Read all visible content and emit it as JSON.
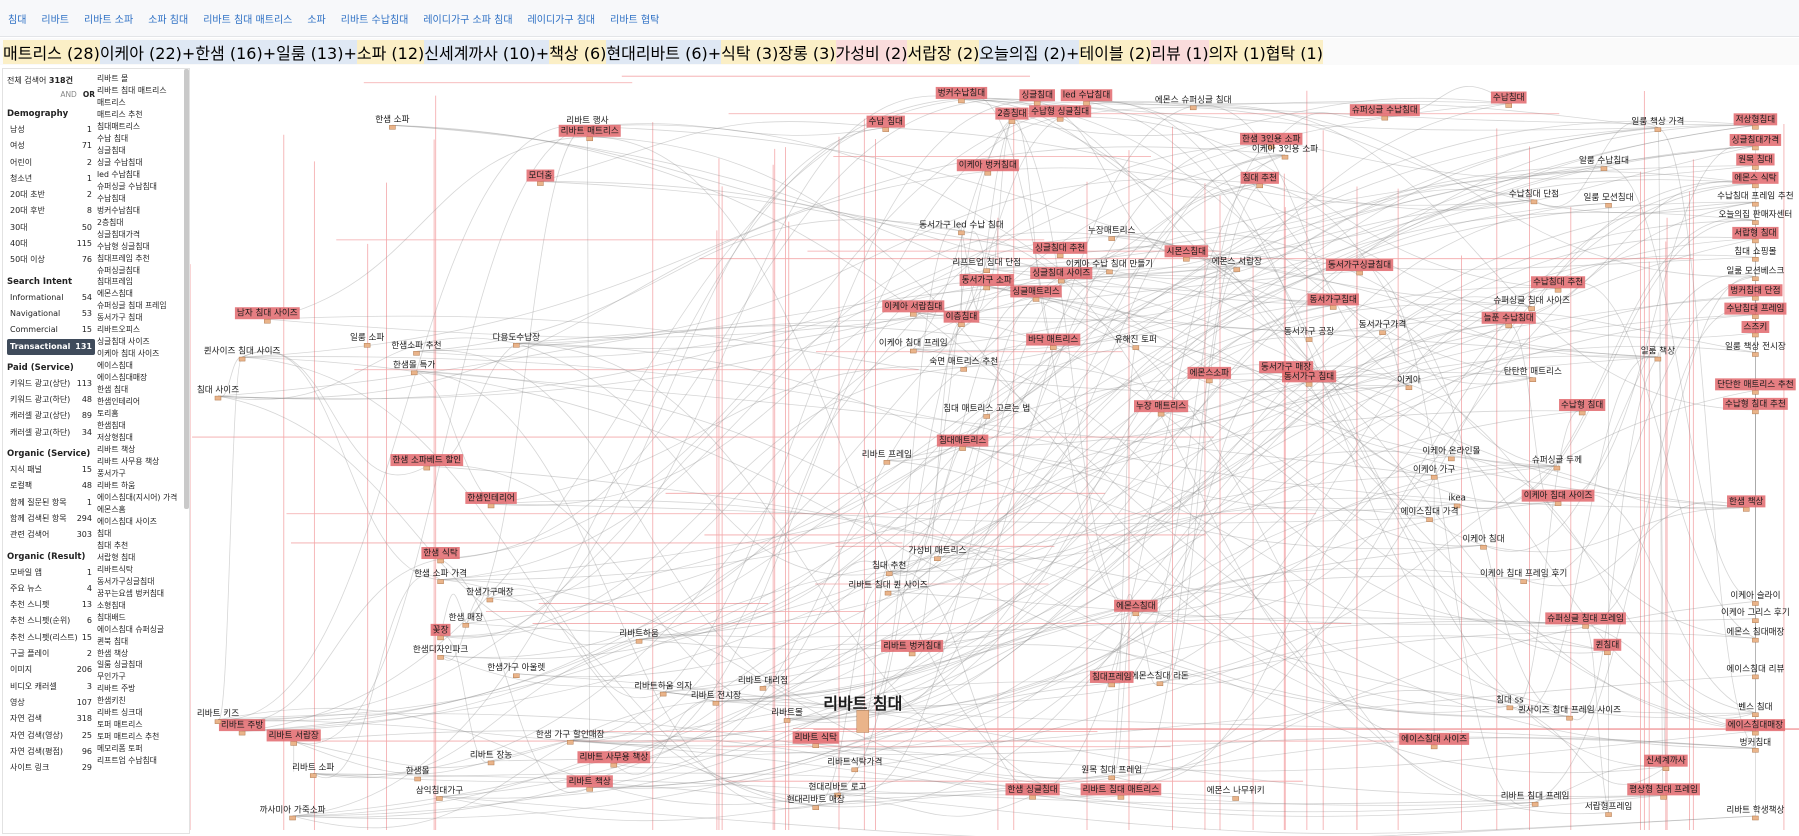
{
  "nav": [
    "침대",
    "리바트",
    "리바트 소파",
    "소파 침대",
    "리바트 침대 매트리스",
    "소파",
    "리바트 수납침대",
    "레이디가구 소파 침대",
    "레이디가구 침대",
    "리바트 협탁"
  ],
  "chips": [
    {
      "label": "매트리스 (28)",
      "color": "#fbefc6"
    },
    {
      "label": "이케아 (22)",
      "color": "#dfe8f4",
      "action": "+"
    },
    {
      "label": "한샘 (16)",
      "color": "#dfe8f4",
      "action": "+"
    },
    {
      "label": "일룸 (13)",
      "color": "#dfe8f4",
      "action": "+"
    },
    {
      "label": "소파 (12)",
      "color": "#fbefc6"
    },
    {
      "label": "신세계까사 (10)",
      "color": "#dfe8f4",
      "action": "+"
    },
    {
      "label": "책상 (6)",
      "color": "#fbefc6"
    },
    {
      "label": "현대리바트 (6)",
      "color": "#dfe8f4",
      "action": "+"
    },
    {
      "label": "식탁 (3)",
      "color": "#fbefc6"
    },
    {
      "label": "장롱 (3)",
      "color": "#fbefc6"
    },
    {
      "label": "가성비 (2)",
      "color": "#fadcdc"
    },
    {
      "label": "서랍장 (2)",
      "color": "#fbefc6"
    },
    {
      "label": "오늘의집 (2)",
      "color": "#dfe8f4",
      "action": "+"
    },
    {
      "label": "테이블 (2)",
      "color": "#fbefc6"
    },
    {
      "label": "리뷰 (1)",
      "color": "#fadcdc"
    },
    {
      "label": "의자 (1)",
      "color": "#fbefc6"
    },
    {
      "label": "협탁 (1)",
      "color": "#fbefc6"
    }
  ],
  "panel": {
    "total_label": "전체 검색어",
    "total_count": "318건",
    "and": "AND",
    "or": "OR",
    "sections": [
      {
        "title": "Demography",
        "rows": [
          {
            "label": "남성",
            "count": 1
          },
          {
            "label": "여성",
            "count": 71
          },
          {
            "label": "어린이",
            "count": 2
          },
          {
            "label": "청소년",
            "count": 1
          },
          {
            "label": "20대 초반",
            "count": 2
          },
          {
            "label": "20대 후반",
            "count": 8
          },
          {
            "label": "30대",
            "count": 50
          },
          {
            "label": "40대",
            "count": 115
          },
          {
            "label": "50대 이상",
            "count": 76
          }
        ]
      },
      {
        "title": "Search Intent",
        "rows": [
          {
            "label": "Informational",
            "count": 54
          },
          {
            "label": "Navigational",
            "count": 53
          },
          {
            "label": "Commercial",
            "count": 15
          },
          {
            "label": "Transactional",
            "count": 131,
            "selected": true
          }
        ]
      },
      {
        "title": "Paid (Service)",
        "rows": [
          {
            "label": "키워드 광고(상단)",
            "count": 113
          },
          {
            "label": "키워드 광고(하단)",
            "count": 48
          },
          {
            "label": "캐러셀 광고(상단)",
            "count": 89
          },
          {
            "label": "캐러셀 광고(하단)",
            "count": 34
          }
        ]
      },
      {
        "title": "Organic (Service)",
        "rows": [
          {
            "label": "지식 패널",
            "count": 15
          },
          {
            "label": "로컬팩",
            "count": 48
          },
          {
            "label": "함께 질문된 항목",
            "count": 1
          },
          {
            "label": "함께 검색된 항목",
            "count": 294
          },
          {
            "label": "관련 검색어",
            "count": 303
          }
        ]
      },
      {
        "title": "Organic (Result)",
        "rows": [
          {
            "label": "모바일 앱",
            "count": 1
          },
          {
            "label": "주요 뉴스",
            "count": 4
          },
          {
            "label": "추천 스니펫",
            "count": 13
          },
          {
            "label": "추천 스니펫(순위)",
            "count": 6
          },
          {
            "label": "추천 스니펫(리스트)",
            "count": 15
          },
          {
            "label": "구글 플레이",
            "count": 2
          },
          {
            "label": "이미지",
            "count": 206
          },
          {
            "label": "비디오 캐러셀",
            "count": 3
          },
          {
            "label": "영상",
            "count": 107
          },
          {
            "label": "자연 검색",
            "count": 318
          },
          {
            "label": "자연 검색(영상)",
            "count": 25
          },
          {
            "label": "자연 검색(평점)",
            "count": 96
          },
          {
            "label": "사이트 링크",
            "count": 29
          }
        ]
      }
    ]
  },
  "keywords": [
    "리바트 몰",
    "리바트 침대 매트리스",
    "매트리스",
    "매트리스 추천",
    "침대매트리스",
    "수납 침대",
    "싱글침대",
    "싱글 수납침대",
    "led 수납침대",
    "슈퍼싱글 수납침대",
    "수납침대",
    "벙커수납침대",
    "2층침대",
    "싱글침대가격",
    "수납형 싱글침대",
    "침대프레임 추천",
    "슈퍼싱글침대",
    "침대프레임",
    "에몬스침대",
    "슈퍼싱글 침대 프레임",
    "동서가구 침대",
    "리바트오피스",
    "싱글침대 사이즈",
    "이케아 침대 사이즈",
    "에이스침대",
    "에이스침대매장",
    "한샘 침대",
    "한샘인테리어",
    "토리홈",
    "한샘침대",
    "저상형침대",
    "리바트 책상",
    "리바트 사무용 책상",
    "풍서가구",
    "리바트 하움",
    "에이스침대(지시어) 가격",
    "에몬스홈",
    "에이스침대 사이즈",
    "침대",
    "침대 추천",
    "서랍형 침대",
    "리바트식탁",
    "동서가구싱글침대",
    "꿈꾸는요셉 벙커침대",
    "소형침대",
    "침대배드",
    "에이스침대 슈퍼싱글",
    "퀸북 침대",
    "한샘 책상",
    "일룸 싱글침대",
    "무인가구",
    "리바트 주방",
    "한샘키친",
    "리바트 싱크대",
    "토퍼 매트리스",
    "토퍼 매트리스 추천",
    "메모리폼 토퍼",
    "리프트업 수납침대"
  ],
  "graph": {
    "nodes": [
      {
        "label": "리바트 침대"
      },
      {
        "label": "한샘 소파"
      },
      {
        "label": "리바트 행사"
      },
      {
        "label": "리바트 매트리스",
        "highlight": true
      },
      {
        "label": "벙커수납침대",
        "highlight": true
      },
      {
        "label": "싱글침대",
        "highlight": true
      },
      {
        "label": "led 수납침대",
        "highlight": true
      },
      {
        "label": "에몬스 슈퍼싱글 침대"
      },
      {
        "label": "수납침대",
        "highlight": true
      },
      {
        "label": "수납 침대",
        "highlight": true
      },
      {
        "label": "수납형 싱글침대",
        "highlight": true
      },
      {
        "label": "2층침대",
        "highlight": true
      },
      {
        "label": "슈퍼싱글 수납침대",
        "highlight": true
      },
      {
        "label": "저상형침대",
        "highlight": true
      },
      {
        "label": "일룸 책상 가격"
      },
      {
        "label": "한샘 3인용 소파",
        "highlight": true
      },
      {
        "label": "이케아 3인용 소파"
      },
      {
        "label": "모더홈",
        "highlight": true
      },
      {
        "label": "싱글침대가격",
        "highlight": true
      },
      {
        "label": "원목 침대",
        "highlight": true
      },
      {
        "label": "이케아 벙커침대",
        "highlight": true
      },
      {
        "label": "일룸 수납침대"
      },
      {
        "label": "침대 추천",
        "highlight": true
      },
      {
        "label": "에몬스 식탁",
        "highlight": true
      },
      {
        "label": "수납침대 단점"
      },
      {
        "label": "일룸 모션침대"
      },
      {
        "label": "수납침대 프레임 추천"
      },
      {
        "label": "오늘의집 판매자센터"
      },
      {
        "label": "동서가구 led 수납 침대"
      },
      {
        "label": "누장매트리스"
      },
      {
        "label": "싱글침대 추천",
        "highlight": true
      },
      {
        "label": "시몬스침대",
        "highlight": true
      },
      {
        "label": "서랍형 침대",
        "highlight": true
      },
      {
        "label": "리프트업 침대 단점"
      },
      {
        "label": "이케아 수납 침대 만들기"
      },
      {
        "label": "에몬스 서랍장"
      },
      {
        "label": "동서가구싱글침대",
        "highlight": true
      },
      {
        "label": "침대 쇼핑몰"
      },
      {
        "label": "일룸 모션베스크"
      },
      {
        "label": "동서가구 소파",
        "highlight": true
      },
      {
        "label": "싱글침대 사이즈",
        "highlight": true
      },
      {
        "label": "수납침대 추천",
        "highlight": true
      },
      {
        "label": "벙커침대 단점",
        "highlight": true
      },
      {
        "label": "남자 침대 사이즈",
        "highlight": true
      },
      {
        "label": "싱글매트리스",
        "highlight": true
      },
      {
        "label": "동서가구침대",
        "highlight": true
      },
      {
        "label": "슈퍼싱글 침대 사이즈"
      },
      {
        "label": "이케아 서랍침대",
        "highlight": true
      },
      {
        "label": "수납침대 프레임",
        "highlight": true
      },
      {
        "label": "이층침대",
        "highlight": true
      },
      {
        "label": "동서가구 공장"
      },
      {
        "label": "동서가구가격"
      },
      {
        "label": "늘푼 수납침대",
        "highlight": true
      },
      {
        "label": "스즈키",
        "highlight": true
      },
      {
        "label": "일룸 소파"
      },
      {
        "label": "다용도수납장"
      },
      {
        "label": "한샘소파 추천"
      },
      {
        "label": "일룸 책상 전시장"
      },
      {
        "label": "퀸사이즈 침대 사이즈"
      },
      {
        "label": "바닥 매트리스",
        "highlight": true
      },
      {
        "label": "유해진 토퍼"
      },
      {
        "label": "이케아 침대 프레임"
      },
      {
        "label": "일룸 책상"
      },
      {
        "label": "한샘몰 특가"
      },
      {
        "label": "숙면 매트리스 추천"
      },
      {
        "label": "동서가구 매장",
        "highlight": true
      },
      {
        "label": "에몬스소파",
        "highlight": true
      },
      {
        "label": "탄탄한 매트리스"
      },
      {
        "label": "이케아"
      },
      {
        "label": "동서가구 침대",
        "highlight": true
      },
      {
        "label": "단단한 매트리스 추천",
        "highlight": true
      },
      {
        "label": "침대 사이즈"
      },
      {
        "label": "수납형 침대",
        "highlight": true
      },
      {
        "label": "누장 매트리스",
        "highlight": true
      },
      {
        "label": "침대 매트리스 고르는 법"
      },
      {
        "label": "수납형 침대 추천",
        "highlight": true
      },
      {
        "label": "리바트 프레임"
      },
      {
        "label": "한샘 소파베드 할인",
        "highlight": true
      },
      {
        "label": "침대매트리스",
        "highlight": true
      },
      {
        "label": "이케아 온라인몰"
      },
      {
        "label": "슈퍼싱글 두께"
      },
      {
        "label": "이케아 가구"
      },
      {
        "label": "한샘인테리어",
        "highlight": true
      },
      {
        "label": "이케아 침대 사이즈",
        "highlight": true
      },
      {
        "label": "ikea"
      },
      {
        "label": "한샘 책상",
        "highlight": true
      },
      {
        "label": "에이스침대 가격"
      },
      {
        "label": "리바트 침대 퀸 사이즈"
      },
      {
        "label": "침대 추천"
      },
      {
        "label": "가성비 매트리스"
      },
      {
        "label": "한샘 식탁",
        "highlight": true
      },
      {
        "label": "한샘 소파 가격"
      },
      {
        "label": "이케아 침대"
      },
      {
        "label": "이케아 침대 프레임 후기"
      },
      {
        "label": "한샘가구매장"
      },
      {
        "label": "에몬스침대",
        "highlight": true
      },
      {
        "label": "한샘 매장"
      },
      {
        "label": "리바트하움"
      },
      {
        "label": "슈퍼싱글 침대 프레임",
        "highlight": true
      },
      {
        "label": "이케아 슬라이"
      },
      {
        "label": "리바트 벙커침대",
        "highlight": true
      },
      {
        "label": "퀸침대",
        "highlight": true
      },
      {
        "label": "한샘가구 아울렛"
      },
      {
        "label": "에몬스침대 라돈"
      },
      {
        "label": "침대프레임",
        "highlight": true
      },
      {
        "label": "리바트하움 의자"
      },
      {
        "label": "리바트 전시장"
      },
      {
        "label": "리바트 대리점"
      },
      {
        "label": "리바트몰"
      },
      {
        "label": "침대 ss"
      },
      {
        "label": "퀸사이즈 침대 프레임 사이즈"
      },
      {
        "label": "리바트 식탁",
        "highlight": true
      },
      {
        "label": "에이스침대 사이즈",
        "highlight": true
      },
      {
        "label": "리바트식탁가격"
      },
      {
        "label": "현대리바트 로고"
      },
      {
        "label": "원목 침대 프레임"
      },
      {
        "label": "리바트 책상",
        "highlight": true
      },
      {
        "label": "신세계까사",
        "highlight": true
      },
      {
        "label": "한샘 가구 할인매장"
      },
      {
        "label": "리바트 장농"
      },
      {
        "label": "리바트 사무용 책상",
        "highlight": true
      },
      {
        "label": "한샘 싱글침대",
        "highlight": true
      },
      {
        "label": "에몬스 나무위키"
      },
      {
        "label": "리바트 침대 프레임"
      },
      {
        "label": "서랍형프레임"
      },
      {
        "label": "현대리바트 매장"
      },
      {
        "label": "한샘몰"
      },
      {
        "label": "삼익침대가구"
      },
      {
        "label": "까사미아 가죽소파"
      },
      {
        "label": "리바트 주방",
        "highlight": true
      },
      {
        "label": "리바트 키즈"
      },
      {
        "label": "리바트 서랍장",
        "highlight": true
      },
      {
        "label": "리바트 소파"
      },
      {
        "label": "리바트 침대 매트리스",
        "highlight": true
      },
      {
        "label": "에이스침대 리뷰"
      },
      {
        "label": "벤스 침대"
      },
      {
        "label": "에이스침대매장",
        "highlight": true
      },
      {
        "label": "벙커침대"
      },
      {
        "label": "평상형 침대 프레임",
        "highlight": true
      },
      {
        "label": "리바트 학생책상"
      },
      {
        "label": "한샘디자인파크"
      },
      {
        "label": "꽃장",
        "highlight": true
      },
      {
        "label": "이케아 그리스 후기"
      },
      {
        "label": "에몬스 침대매장"
      }
    ]
  }
}
